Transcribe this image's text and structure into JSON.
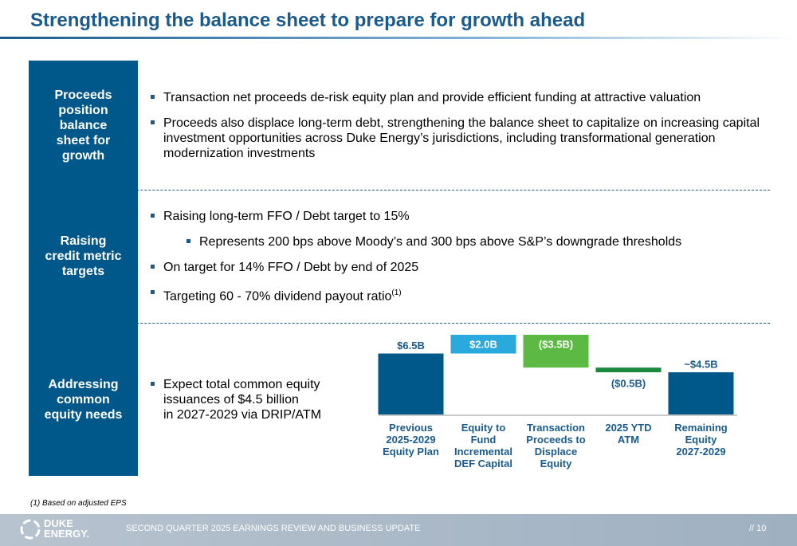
{
  "title": "Strengthening the balance sheet to prepare for growth ahead",
  "sections": [
    {
      "label": "Proceeds position balance sheet for growth",
      "bullets": [
        {
          "text": "Transaction net proceeds de-risk equity plan and provide efficient funding at attractive valuation",
          "level": 1
        },
        {
          "text": "Proceeds also displace long-term debt, strengthening the balance sheet to capitalize on increasing capital investment opportunities across Duke Energy’s jurisdictions, including transformational generation modernization investments",
          "level": 1
        }
      ]
    },
    {
      "label": "Raising credit metric targets",
      "bullets": [
        {
          "text": "Raising long-term FFO / Debt target to 15%",
          "level": 1
        },
        {
          "text": "Represents 200 bps above Moody’s and 300 bps above S&P’s downgrade thresholds",
          "level": 2
        },
        {
          "text": "On target for 14% FFO / Debt by end of 2025",
          "level": 1
        },
        {
          "text": "Targeting 60 - 70% dividend payout ratio",
          "sup": "(1)",
          "level": 1
        }
      ]
    },
    {
      "label": "Addressing common equity needs",
      "bullets": [
        {
          "text": "Expect total common equity\nissuances of $4.5 billion\nin 2027-2029 via DRIP/ATM",
          "level": 1
        }
      ]
    }
  ],
  "chart_data": {
    "type": "waterfall",
    "categories": [
      "Previous\n2025-2029\nEquity Plan",
      "Equity to\nFund\nIncremental\nDEF Capital",
      "Transaction\nProceeds to\nDisplace\nEquity",
      "2025 YTD\nATM",
      "Remaining\nEquity\n2027-2029"
    ],
    "values": [
      6.5,
      2.0,
      -3.5,
      -0.5,
      4.5
    ],
    "value_labels": [
      "$6.5B",
      "$2.0B",
      "($3.5B)",
      "($0.5B)",
      "~$4.5B"
    ],
    "measure": [
      "total",
      "relative",
      "relative",
      "relative",
      "total"
    ],
    "colors": [
      "#00578a",
      "#29a9dc",
      "#5cb944",
      "#1b8a3e",
      "#00578a"
    ],
    "ylim": [
      0,
      8.5
    ]
  },
  "footnote": "(1)  Based on adjusted EPS",
  "footer": {
    "logo": "DUKE\nENERGY.",
    "text": "SECOND QUARTER 2025 EARNINGS REVIEW AND BUSINESS UPDATE",
    "page": "//  10"
  }
}
